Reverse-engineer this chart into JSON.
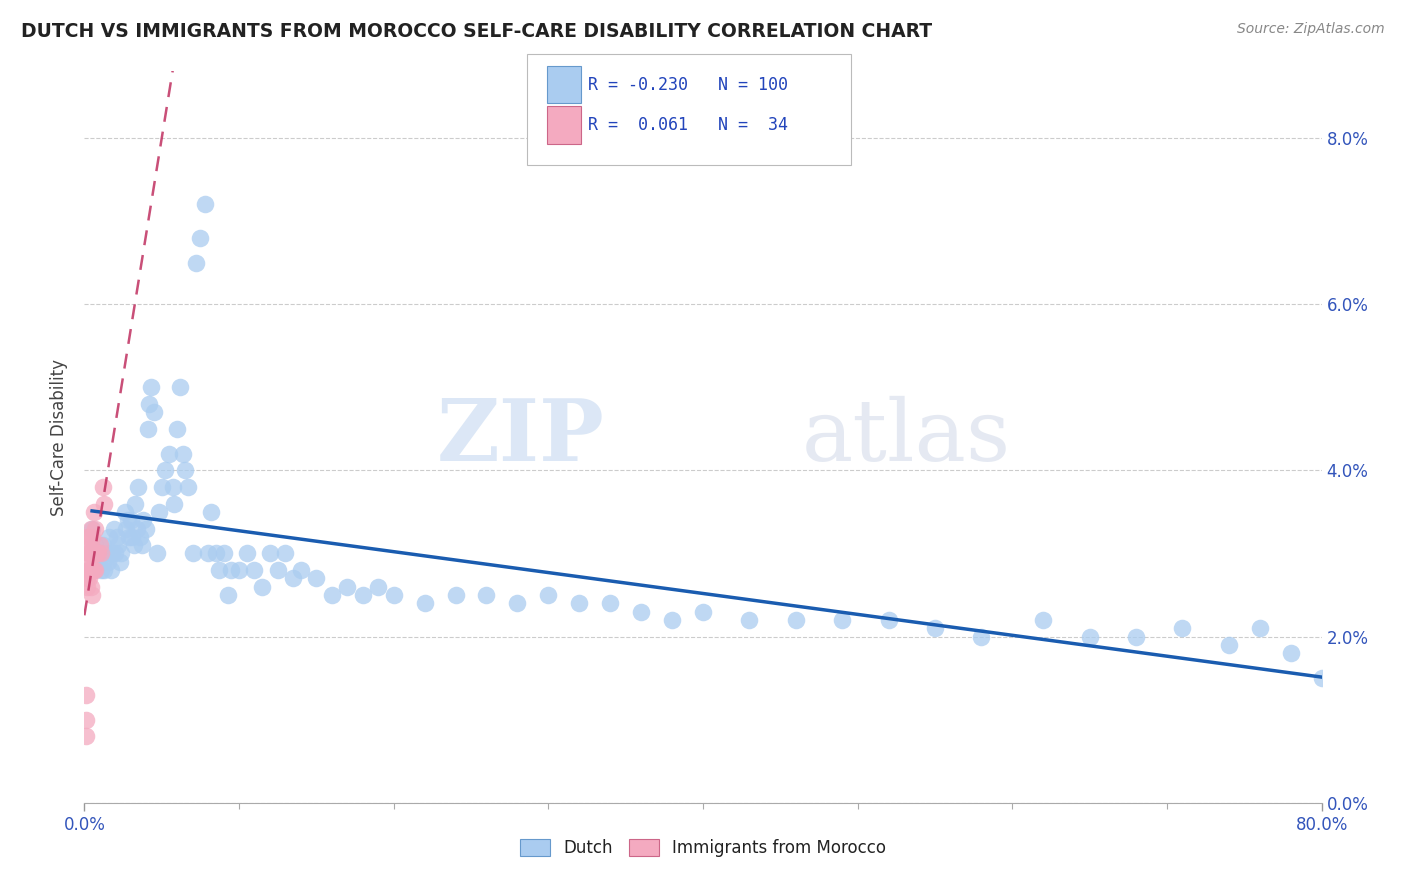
{
  "title": "DUTCH VS IMMIGRANTS FROM MOROCCO SELF-CARE DISABILITY CORRELATION CHART",
  "source": "Source: ZipAtlas.com",
  "ylabel": "Self-Care Disability",
  "xlim": [
    0.0,
    0.8
  ],
  "ylim": [
    0.0,
    0.088
  ],
  "dutch_color": "#aaccf0",
  "morocco_color": "#f4aac0",
  "dutch_line_color": "#1a5cb0",
  "morocco_line_color": "#c03060",
  "legend_r_dutch": "-0.230",
  "legend_n_dutch": "100",
  "legend_r_morocco": "0.061",
  "legend_n_morocco": "34",
  "watermark_zip": "ZIP",
  "watermark_atlas": "atlas",
  "dutch_x": [
    0.005,
    0.007,
    0.008,
    0.009,
    0.01,
    0.011,
    0.012,
    0.012,
    0.013,
    0.014,
    0.015,
    0.016,
    0.017,
    0.018,
    0.019,
    0.02,
    0.021,
    0.022,
    0.023,
    0.024,
    0.026,
    0.027,
    0.028,
    0.029,
    0.03,
    0.031,
    0.032,
    0.033,
    0.034,
    0.035,
    0.036,
    0.037,
    0.038,
    0.04,
    0.041,
    0.042,
    0.043,
    0.045,
    0.047,
    0.048,
    0.05,
    0.052,
    0.055,
    0.057,
    0.058,
    0.06,
    0.062,
    0.064,
    0.065,
    0.067,
    0.07,
    0.072,
    0.075,
    0.078,
    0.08,
    0.082,
    0.085,
    0.087,
    0.09,
    0.093,
    0.095,
    0.1,
    0.105,
    0.11,
    0.115,
    0.12,
    0.125,
    0.13,
    0.135,
    0.14,
    0.15,
    0.16,
    0.17,
    0.18,
    0.19,
    0.2,
    0.22,
    0.24,
    0.26,
    0.28,
    0.3,
    0.32,
    0.34,
    0.36,
    0.38,
    0.4,
    0.43,
    0.46,
    0.49,
    0.52,
    0.55,
    0.58,
    0.62,
    0.65,
    0.68,
    0.71,
    0.74,
    0.76,
    0.78,
    0.8
  ],
  "dutch_y": [
    0.033,
    0.031,
    0.03,
    0.029,
    0.03,
    0.028,
    0.029,
    0.031,
    0.028,
    0.03,
    0.029,
    0.032,
    0.028,
    0.03,
    0.033,
    0.03,
    0.032,
    0.031,
    0.029,
    0.03,
    0.035,
    0.033,
    0.034,
    0.032,
    0.034,
    0.032,
    0.031,
    0.036,
    0.033,
    0.038,
    0.032,
    0.031,
    0.034,
    0.033,
    0.045,
    0.048,
    0.05,
    0.047,
    0.03,
    0.035,
    0.038,
    0.04,
    0.042,
    0.038,
    0.036,
    0.045,
    0.05,
    0.042,
    0.04,
    0.038,
    0.03,
    0.065,
    0.068,
    0.072,
    0.03,
    0.035,
    0.03,
    0.028,
    0.03,
    0.025,
    0.028,
    0.028,
    0.03,
    0.028,
    0.026,
    0.03,
    0.028,
    0.03,
    0.027,
    0.028,
    0.027,
    0.025,
    0.026,
    0.025,
    0.026,
    0.025,
    0.024,
    0.025,
    0.025,
    0.024,
    0.025,
    0.024,
    0.024,
    0.023,
    0.022,
    0.023,
    0.022,
    0.022,
    0.022,
    0.022,
    0.021,
    0.02,
    0.022,
    0.02,
    0.02,
    0.021,
    0.019,
    0.021,
    0.018,
    0.015
  ],
  "morocco_x": [
    0.001,
    0.001,
    0.001,
    0.002,
    0.002,
    0.002,
    0.002,
    0.002,
    0.003,
    0.003,
    0.003,
    0.003,
    0.003,
    0.004,
    0.004,
    0.004,
    0.004,
    0.004,
    0.005,
    0.005,
    0.005,
    0.005,
    0.006,
    0.006,
    0.006,
    0.007,
    0.007,
    0.007,
    0.008,
    0.009,
    0.01,
    0.011,
    0.012,
    0.013
  ],
  "morocco_y": [
    0.01,
    0.013,
    0.008,
    0.027,
    0.03,
    0.028,
    0.026,
    0.032,
    0.029,
    0.027,
    0.03,
    0.032,
    0.028,
    0.03,
    0.028,
    0.031,
    0.033,
    0.026,
    0.028,
    0.03,
    0.025,
    0.032,
    0.035,
    0.03,
    0.028,
    0.03,
    0.028,
    0.033,
    0.03,
    0.03,
    0.031,
    0.03,
    0.038,
    0.036
  ]
}
